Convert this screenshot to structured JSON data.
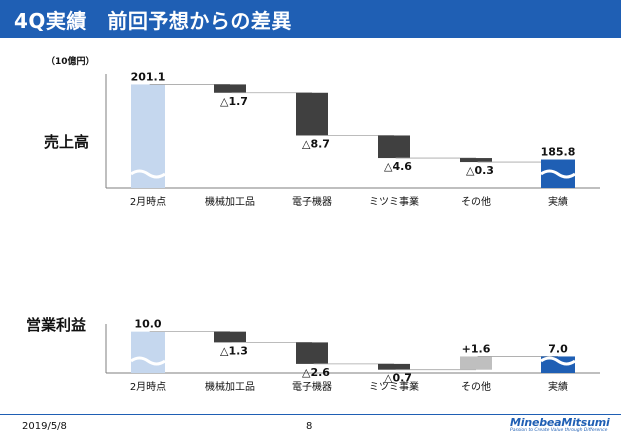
{
  "header": {
    "title": "4Q実績　前回予想からの差異"
  },
  "unit": "（10億円）",
  "footer": {
    "date": "2019/5/8",
    "page": "8"
  },
  "logo": {
    "name": "MinebeaMitsumi",
    "tagline": "Passion to Create Value through Difference"
  },
  "colors": {
    "header": "#1f5fb4",
    "start": "#c5d7ee",
    "end": "#1f5fb4",
    "decrease": "#404040",
    "increase": "#bfbfbf"
  },
  "chart_data": [
    {
      "type": "bar",
      "subtype": "waterfall",
      "label": "売上高",
      "categories": [
        "2月時点",
        "機械加工品",
        "電子機器",
        "ミツミ事業",
        "その他",
        "実績"
      ],
      "values": [
        201.1,
        -1.7,
        -8.7,
        -4.6,
        -0.3,
        185.8
      ],
      "value_labels": [
        "201.1",
        "△1.7",
        "△8.7",
        "△4.6",
        "△0.3",
        "185.8"
      ],
      "kinds": [
        "start",
        "decrease",
        "decrease",
        "decrease",
        "decrease",
        "end"
      ],
      "axis_break": true,
      "ylim": [
        180,
        202
      ]
    },
    {
      "type": "bar",
      "subtype": "waterfall",
      "label": "営業利益",
      "categories": [
        "2月時点",
        "機械加工品",
        "電子機器",
        "ミツミ事業",
        "その他",
        "実績"
      ],
      "values": [
        10.0,
        -1.3,
        -2.6,
        -0.7,
        1.6,
        7.0
      ],
      "value_labels": [
        "10.0",
        "△1.3",
        "△2.6",
        "△0.7",
        "+1.6",
        "7.0"
      ],
      "kinds": [
        "start",
        "decrease",
        "decrease",
        "decrease",
        "increase",
        "end"
      ],
      "axis_break": true,
      "ylim": [
        5,
        10.2
      ]
    }
  ]
}
